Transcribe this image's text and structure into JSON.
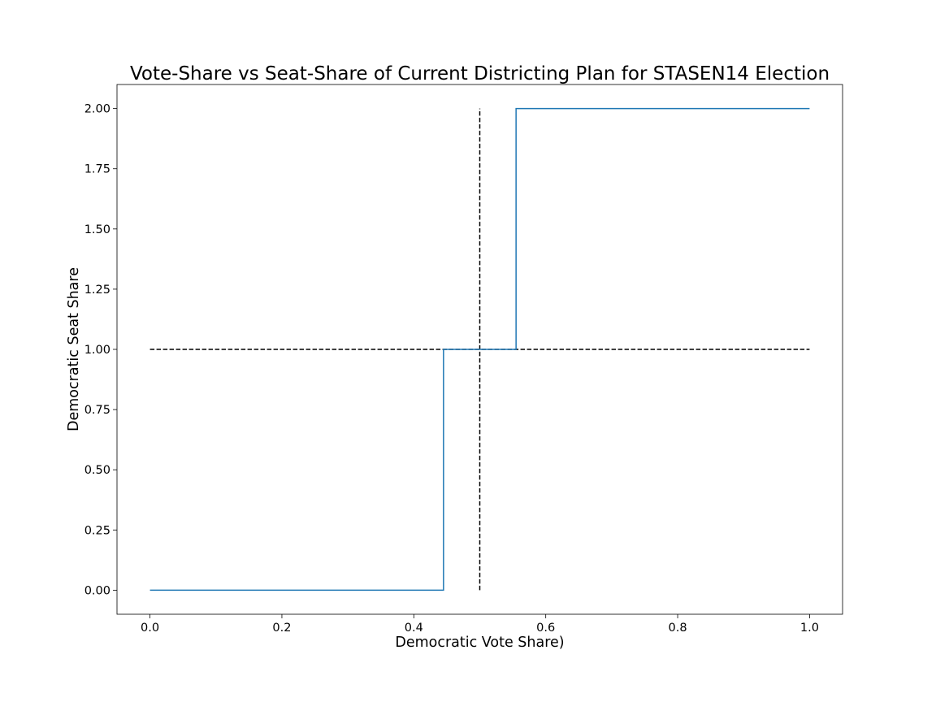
{
  "chart_data": {
    "type": "line",
    "title": "Vote-Share vs Seat-Share of Current Districting Plan for STASEN14 Election",
    "xlabel": "Democratic Vote Share)",
    "ylabel": "Democratic Seat Share",
    "xlim": [
      -0.05,
      1.05
    ],
    "ylim": [
      -0.1,
      2.1
    ],
    "x_ticks": [
      0.0,
      0.2,
      0.4,
      0.6,
      0.8,
      1.0
    ],
    "x_tick_labels": [
      "0.0",
      "0.2",
      "0.4",
      "0.6",
      "0.8",
      "1.0"
    ],
    "y_ticks": [
      0.0,
      0.25,
      0.5,
      0.75,
      1.0,
      1.25,
      1.5,
      1.75,
      2.0
    ],
    "y_tick_labels": [
      "0.00",
      "0.25",
      "0.50",
      "0.75",
      "1.00",
      "1.25",
      "1.50",
      "1.75",
      "2.00"
    ],
    "grid": false,
    "series": [
      {
        "style": "step",
        "color": "#1f77b4",
        "x": [
          0.0,
          0.445,
          0.445,
          0.555,
          0.555,
          1.0
        ],
        "y": [
          0.0,
          0.0,
          1.0,
          1.0,
          2.0,
          2.0
        ]
      }
    ],
    "reference_lines": [
      {
        "orientation": "horizontal",
        "style": "dashed",
        "color": "#000000",
        "y": 1.0,
        "x_range": [
          0.0,
          1.0
        ]
      },
      {
        "orientation": "vertical",
        "style": "dashed",
        "color": "#000000",
        "x": 0.5,
        "y_range": [
          0.0,
          2.0
        ]
      }
    ]
  }
}
